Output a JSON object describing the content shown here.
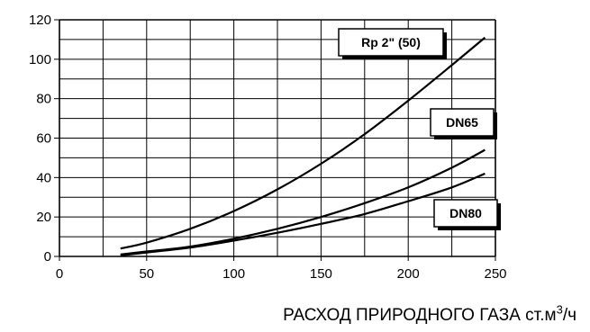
{
  "chart_data": {
    "type": "line",
    "title": "",
    "xlabel": {
      "main": "РАСХОД ПРИРОДНОГО ГАЗА ст.м",
      "superscript": "3",
      "suffix": "/ч"
    },
    "ylabel": "",
    "xlim": [
      0,
      250
    ],
    "ylim": [
      0,
      120
    ],
    "x_ticks": [
      0,
      50,
      100,
      150,
      200,
      250
    ],
    "y_ticks": [
      0,
      20,
      40,
      60,
      80,
      100,
      120
    ],
    "grid": true,
    "series": [
      {
        "name": "Rp 2\" (50)",
        "x": [
          35,
          50,
          75,
          100,
          125,
          150,
          175,
          200,
          225,
          244
        ],
        "y": [
          4,
          7,
          14,
          23,
          34,
          47,
          62,
          79,
          97,
          111
        ]
      },
      {
        "name": "DN65",
        "x": [
          35,
          50,
          75,
          100,
          125,
          150,
          175,
          200,
          225,
          244
        ],
        "y": [
          1,
          2.5,
          5,
          9,
          14,
          20,
          27,
          35,
          45,
          54
        ]
      },
      {
        "name": "DN80",
        "x": [
          35,
          50,
          75,
          100,
          125,
          150,
          175,
          200,
          225,
          244
        ],
        "y": [
          0.5,
          2,
          4.5,
          8,
          12,
          16.5,
          21.5,
          28,
          35,
          42
        ]
      }
    ]
  }
}
